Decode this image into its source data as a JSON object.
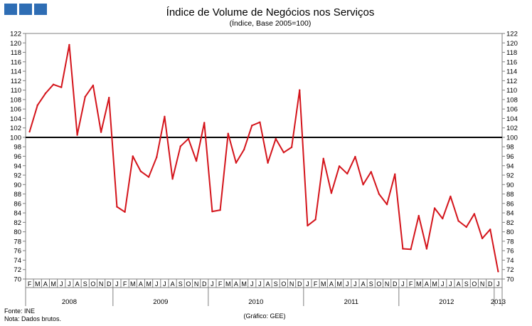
{
  "header": {
    "title": "Índice de Volume de Negócios nos Serviços",
    "subtitle": "(Índice,  Base 2005=100)",
    "logo_color": "#2e6db4"
  },
  "footer": {
    "source": "Fonte: INE",
    "note": "Nota: Dados  brutos.",
    "credit": "(Gráfico:  GEE)"
  },
  "colors": {
    "series": "#d4141b",
    "reference": "#000000",
    "axis": "#808080"
  },
  "chart_data": {
    "type": "line",
    "title": "Índice de Volume de Negócios nos Serviços",
    "subtitle": "(Índice,  Base 2005=100)",
    "ylim": [
      70,
      122
    ],
    "y_step": 2,
    "y_ticks": [
      70,
      72,
      74,
      76,
      78,
      80,
      82,
      84,
      86,
      88,
      90,
      92,
      94,
      96,
      98,
      100,
      102,
      104,
      106,
      108,
      110,
      112,
      114,
      116,
      118,
      120,
      122
    ],
    "grid": false,
    "reference_line": 100,
    "month_labels": [
      "F",
      "M",
      "A",
      "M",
      "J",
      "J",
      "A",
      "S",
      "O",
      "N",
      "D",
      "J",
      "F",
      "M",
      "A",
      "M",
      "J",
      "J",
      "A",
      "S",
      "O",
      "N",
      "D",
      "J",
      "F",
      "M",
      "A",
      "M",
      "J",
      "J",
      "A",
      "S",
      "O",
      "N",
      "D",
      "J",
      "F",
      "M",
      "A",
      "M",
      "J",
      "J",
      "A",
      "S",
      "O",
      "N",
      "D",
      "J",
      "F",
      "M",
      "A",
      "M",
      "J",
      "J",
      "A",
      "S",
      "O",
      "N",
      "D",
      "J"
    ],
    "years": [
      {
        "label": "2008",
        "start": 0,
        "end": 11
      },
      {
        "label": "2009",
        "start": 11,
        "end": 23
      },
      {
        "label": "2010",
        "start": 23,
        "end": 35
      },
      {
        "label": "2011",
        "start": 35,
        "end": 47
      },
      {
        "label": "2012",
        "start": 47,
        "end": 59
      },
      {
        "label": "2013",
        "start": 59,
        "end": 60
      }
    ],
    "series": [
      {
        "name": "Índice de Volume de Negócios nos Serviços",
        "values": [
          101.2,
          106.8,
          109.3,
          111.2,
          110.6,
          119.6,
          100.5,
          108.6,
          111.0,
          101.1,
          108.4,
          85.3,
          84.2,
          96.0,
          92.8,
          91.6,
          95.8,
          104.4,
          91.2,
          98.1,
          99.7,
          95.0,
          103.1,
          84.3,
          84.6,
          100.8,
          94.6,
          97.4,
          102.5,
          103.2,
          94.6,
          99.7,
          96.8,
          97.9,
          110.0,
          81.3,
          82.6,
          95.5,
          88.2,
          93.9,
          92.3,
          95.9,
          90.0,
          92.7,
          88.0,
          85.8,
          92.2,
          76.4,
          76.3,
          83.4,
          76.4,
          85.0,
          82.8,
          87.5,
          82.3,
          81.0,
          83.8,
          78.6,
          80.5,
          71.6
        ]
      }
    ]
  }
}
